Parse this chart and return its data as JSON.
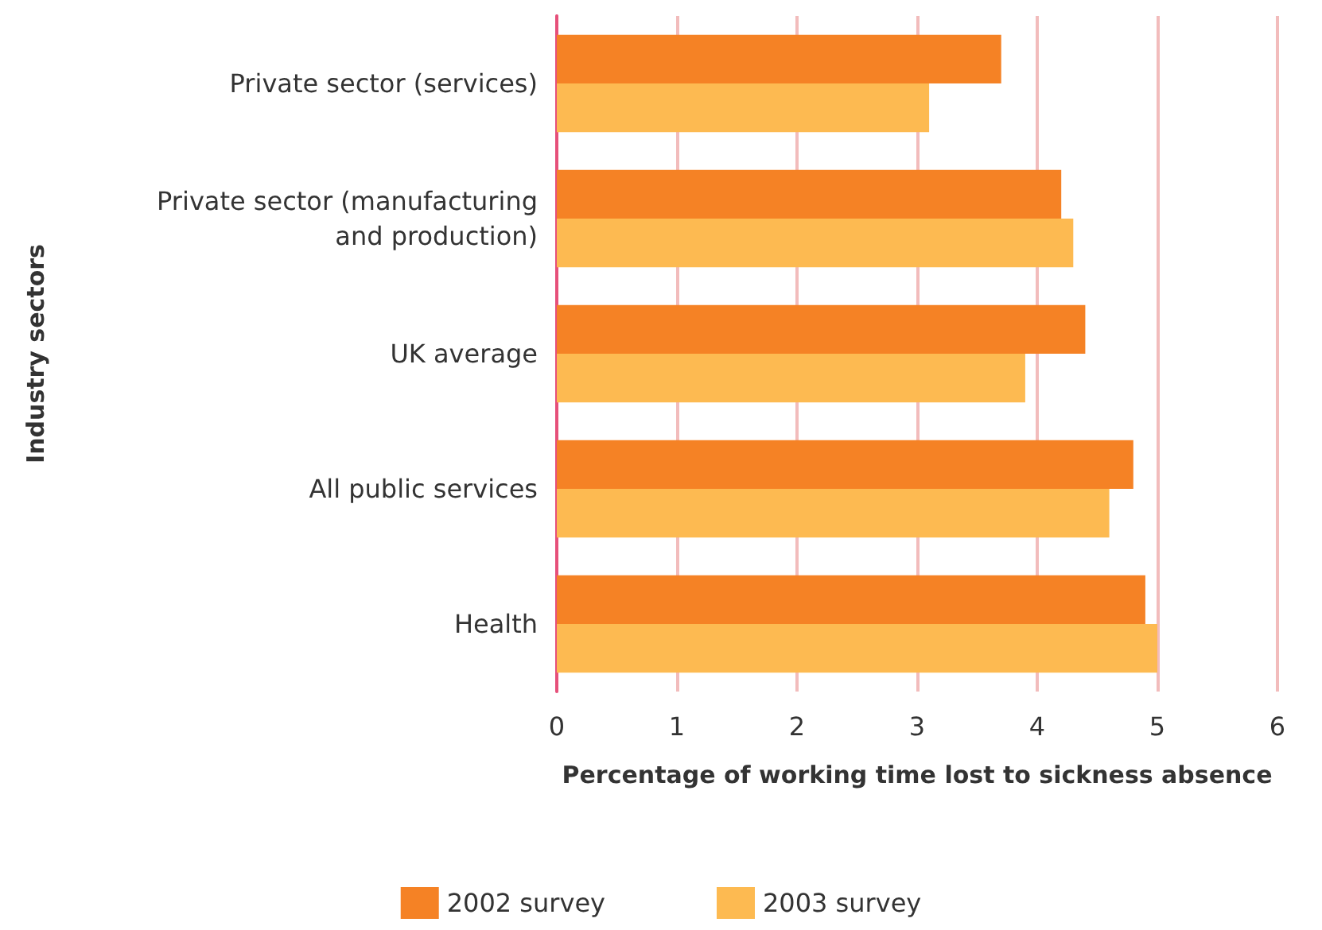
{
  "chart_data": {
    "type": "bar",
    "orientation": "horizontal",
    "xlabel": "Percentage of working time lost to sickness absence",
    "ylabel": "Industry sectors",
    "categories": [
      "Private sector (services)",
      "Private sector (manufacturing\nand production)",
      "UK average",
      "All public services",
      "Health"
    ],
    "series": [
      {
        "name": "2002 survey",
        "color": "#f58225",
        "values": [
          3.7,
          4.2,
          4.4,
          4.8,
          4.9
        ]
      },
      {
        "name": "2003 survey",
        "color": "#fdba51",
        "values": [
          3.1,
          4.3,
          3.9,
          4.6,
          5.0
        ]
      }
    ],
    "xlim": [
      0,
      6
    ],
    "xticks": [
      0,
      1,
      2,
      3,
      4,
      5,
      6
    ],
    "grid": "x",
    "legend": "bottom"
  }
}
